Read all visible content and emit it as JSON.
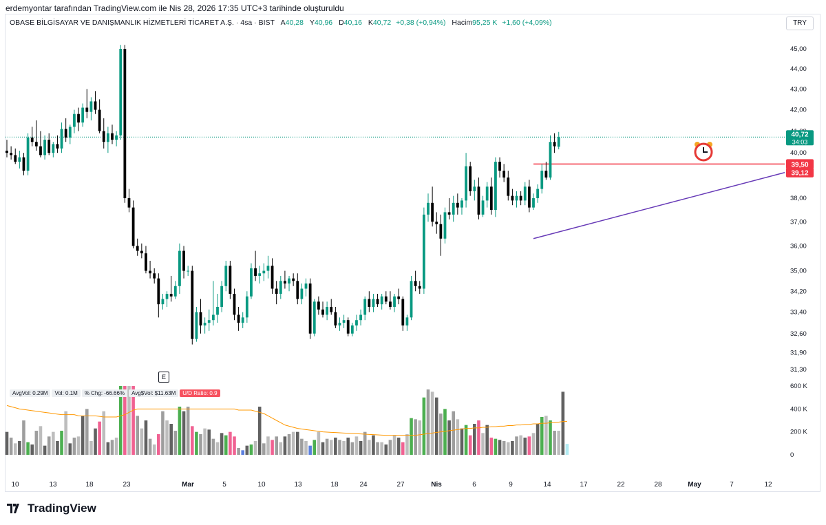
{
  "caption": "erdemyontar tarafından TradingView.com ile Nis 28, 2026 17:35 UTC+3 tarihinde oluşturuldu",
  "legend": {
    "symbol": "OBASE BİLGİSAYAR VE DANIŞMANLIK HİZMETLERİ TİCARET A.Ş. · 4sa · BIST",
    "open_label": "A",
    "open": "40,28",
    "high_label": "Y",
    "high": "40,96",
    "low_label": "D",
    "low": "40,16",
    "close_label": "K",
    "close": "40,72",
    "change": "+0,38 (+0,94%)",
    "volume_label": "Hacim",
    "volume": "95,25 K",
    "volume_change": "+1,60 (+4,09%)"
  },
  "currency": "TRY",
  "volume_legend": [
    "AvgVol: 0.29M",
    "Vol: 0.1M",
    "% Chg: -66.66%",
    "Avg$Vol: $11.63M",
    "U/D Ratio: 0.9"
  ],
  "earnings_marker": "E",
  "brand": "TradingView",
  "colors": {
    "up": "#089981",
    "down": "#000000",
    "resistance": "#f23645",
    "trendline": "#673ab7",
    "vol_avg": "#ff9800"
  },
  "chart_data": {
    "type": "candlestick",
    "interval": "4h",
    "price_axis": {
      "ticks": [
        "45,00",
        "44,00",
        "43,00",
        "42,00",
        "41,00",
        "40,00",
        "38,00",
        "37,00",
        "36,00",
        "35,00",
        "34,20",
        "33,40",
        "32,60",
        "31,90",
        "31,30"
      ],
      "tick_values": [
        45.0,
        44.0,
        43.0,
        42.0,
        41.0,
        40.0,
        38.0,
        37.0,
        36.0,
        35.0,
        34.2,
        33.4,
        32.6,
        31.9,
        31.3
      ],
      "scale": "log",
      "range": [
        31.0,
        45.6
      ]
    },
    "x_axis": {
      "labels": [
        "10",
        "13",
        "18",
        "23",
        "Mar",
        "5",
        "10",
        "13",
        "18",
        "24",
        "27",
        "Nis",
        "6",
        "9",
        "14",
        "17",
        "22",
        "28",
        "May",
        "7",
        "12"
      ],
      "bold": [
        "Mar",
        "Nis",
        "May"
      ]
    },
    "last_price": {
      "value": "40,72",
      "countdown": "34:03"
    },
    "resistance": {
      "value": 39.5,
      "label": "39,50"
    },
    "trendline": {
      "from": 36.3,
      "to": 39.12,
      "label": "39,12"
    },
    "alert_icon": "alarm-clock-icon",
    "ohlc": [
      [
        40.1,
        40.6,
        39.8,
        40.0
      ],
      [
        40.0,
        40.3,
        39.7,
        39.9
      ],
      [
        39.9,
        40.2,
        39.5,
        39.6
      ],
      [
        39.6,
        40.1,
        39.3,
        39.8
      ],
      [
        39.8,
        40.0,
        39.0,
        39.2
      ],
      [
        39.2,
        40.9,
        39.0,
        40.7
      ],
      [
        40.7,
        41.2,
        40.3,
        40.5
      ],
      [
        40.5,
        41.5,
        40.1,
        40.3
      ],
      [
        40.3,
        41.0,
        39.8,
        39.9
      ],
      [
        39.9,
        40.8,
        39.7,
        40.6
      ],
      [
        40.6,
        40.9,
        39.9,
        40.0
      ],
      [
        40.0,
        40.5,
        39.8,
        40.4
      ],
      [
        40.4,
        40.8,
        40.0,
        40.2
      ],
      [
        40.2,
        41.4,
        40.0,
        41.1
      ],
      [
        41.1,
        41.6,
        40.5,
        40.7
      ],
      [
        40.7,
        41.3,
        40.4,
        41.2
      ],
      [
        41.2,
        42.0,
        40.9,
        41.8
      ],
      [
        41.8,
        42.1,
        41.0,
        41.4
      ],
      [
        41.4,
        42.3,
        41.2,
        42.1
      ],
      [
        42.1,
        43.0,
        41.6,
        41.9
      ],
      [
        41.9,
        42.6,
        41.5,
        42.4
      ],
      [
        42.4,
        42.9,
        41.8,
        42.0
      ],
      [
        42.0,
        42.5,
        40.9,
        41.0
      ],
      [
        41.0,
        41.6,
        40.2,
        40.5
      ],
      [
        40.5,
        41.2,
        40.0,
        40.9
      ],
      [
        40.9,
        41.3,
        40.4,
        40.6
      ],
      [
        40.6,
        41.0,
        40.3,
        40.8
      ],
      [
        40.8,
        45.2,
        40.6,
        45.0
      ],
      [
        45.0,
        45.2,
        37.8,
        38.0
      ],
      [
        38.0,
        38.4,
        37.4,
        37.6
      ],
      [
        37.6,
        37.9,
        35.9,
        36.0
      ],
      [
        36.0,
        36.3,
        35.6,
        35.8
      ],
      [
        35.8,
        36.1,
        35.5,
        35.7
      ],
      [
        35.7,
        36.0,
        34.9,
        35.0
      ],
      [
        35.0,
        35.4,
        34.7,
        34.9
      ],
      [
        34.9,
        35.1,
        34.5,
        34.7
      ],
      [
        34.7,
        34.9,
        33.2,
        33.7
      ],
      [
        33.7,
        34.1,
        33.5,
        33.9
      ],
      [
        33.9,
        34.2,
        33.6,
        34.1
      ],
      [
        34.1,
        34.8,
        33.8,
        34.0
      ],
      [
        34.0,
        34.6,
        33.9,
        34.4
      ],
      [
        34.4,
        36.1,
        34.1,
        35.8
      ],
      [
        35.8,
        36.0,
        34.7,
        35.0
      ],
      [
        35.0,
        35.2,
        34.8,
        35.0
      ],
      [
        35.0,
        35.2,
        32.2,
        32.4
      ],
      [
        32.4,
        33.6,
        32.3,
        33.4
      ],
      [
        33.4,
        33.9,
        32.6,
        32.9
      ],
      [
        32.9,
        33.2,
        32.6,
        33.0
      ],
      [
        33.0,
        33.5,
        32.7,
        33.1
      ],
      [
        33.1,
        34.6,
        32.9,
        33.3
      ],
      [
        33.3,
        34.1,
        33.0,
        33.6
      ],
      [
        33.6,
        34.6,
        33.4,
        34.4
      ],
      [
        34.4,
        35.4,
        34.2,
        35.2
      ],
      [
        35.2,
        35.4,
        33.9,
        34.1
      ],
      [
        34.1,
        34.3,
        33.1,
        33.3
      ],
      [
        33.3,
        33.6,
        32.7,
        33.0
      ],
      [
        33.0,
        33.4,
        32.8,
        33.2
      ],
      [
        33.2,
        34.2,
        33.0,
        34.0
      ],
      [
        34.0,
        35.3,
        33.9,
        35.1
      ],
      [
        35.1,
        35.8,
        34.6,
        34.8
      ],
      [
        34.8,
        35.2,
        34.5,
        34.9
      ],
      [
        34.9,
        35.3,
        34.6,
        35.0
      ],
      [
        35.0,
        35.6,
        34.7,
        35.2
      ],
      [
        35.2,
        35.5,
        34.1,
        34.3
      ],
      [
        34.3,
        34.6,
        33.7,
        34.1
      ],
      [
        34.1,
        34.8,
        33.9,
        34.6
      ],
      [
        34.6,
        35.0,
        34.3,
        34.5
      ],
      [
        34.5,
        34.8,
        34.2,
        34.7
      ],
      [
        34.7,
        34.9,
        34.4,
        34.6
      ],
      [
        34.6,
        34.9,
        33.7,
        33.9
      ],
      [
        33.9,
        34.5,
        33.7,
        34.3
      ],
      [
        34.3,
        34.7,
        34.0,
        34.5
      ],
      [
        34.5,
        34.7,
        32.4,
        32.6
      ],
      [
        32.6,
        33.9,
        32.5,
        33.8
      ],
      [
        33.8,
        34.0,
        33.3,
        33.5
      ],
      [
        33.5,
        33.8,
        33.2,
        33.3
      ],
      [
        33.3,
        33.8,
        33.1,
        33.6
      ],
      [
        33.6,
        33.9,
        33.3,
        33.4
      ],
      [
        33.4,
        33.6,
        32.8,
        32.9
      ],
      [
        32.9,
        33.2,
        32.7,
        33.0
      ],
      [
        33.0,
        33.3,
        32.8,
        33.1
      ],
      [
        33.1,
        33.2,
        32.5,
        32.6
      ],
      [
        32.6,
        33.0,
        32.5,
        32.9
      ],
      [
        32.9,
        33.3,
        32.7,
        33.1
      ],
      [
        33.1,
        33.5,
        32.9,
        33.3
      ],
      [
        33.3,
        34.0,
        33.1,
        33.9
      ],
      [
        33.9,
        34.2,
        33.4,
        33.6
      ],
      [
        33.6,
        34.1,
        33.4,
        33.9
      ],
      [
        33.9,
        34.1,
        33.6,
        33.7
      ],
      [
        33.7,
        34.1,
        33.5,
        34.0
      ],
      [
        34.0,
        34.2,
        33.7,
        33.8
      ],
      [
        33.8,
        34.2,
        33.5,
        33.6
      ],
      [
        33.6,
        34.1,
        33.4,
        34.0
      ],
      [
        34.0,
        34.3,
        33.7,
        33.9
      ],
      [
        33.9,
        34.0,
        32.7,
        32.9
      ],
      [
        32.9,
        33.3,
        32.7,
        33.2
      ],
      [
        33.2,
        34.8,
        33.1,
        34.6
      ],
      [
        34.6,
        35.0,
        34.2,
        34.4
      ],
      [
        34.4,
        34.6,
        34.1,
        34.3
      ],
      [
        34.3,
        37.6,
        34.1,
        37.3
      ],
      [
        37.3,
        38.2,
        37.0,
        37.8
      ],
      [
        37.8,
        38.5,
        36.8,
        37.0
      ],
      [
        37.0,
        37.4,
        36.5,
        36.9
      ],
      [
        36.9,
        37.3,
        35.6,
        36.3
      ],
      [
        36.3,
        37.6,
        36.1,
        37.4
      ],
      [
        37.4,
        38.0,
        37.1,
        37.3
      ],
      [
        37.3,
        38.1,
        37.0,
        37.8
      ],
      [
        37.8,
        38.2,
        37.3,
        37.6
      ],
      [
        37.6,
        38.0,
        37.3,
        37.9
      ],
      [
        37.9,
        40.0,
        37.6,
        39.4
      ],
      [
        39.4,
        39.6,
        38.1,
        38.3
      ],
      [
        38.3,
        38.8,
        37.9,
        38.5
      ],
      [
        38.5,
        38.9,
        37.1,
        37.3
      ],
      [
        37.3,
        38.1,
        37.2,
        37.9
      ],
      [
        37.9,
        38.7,
        37.6,
        38.5
      ],
      [
        38.5,
        38.9,
        37.3,
        37.5
      ],
      [
        37.5,
        39.8,
        37.2,
        39.6
      ],
      [
        39.6,
        39.8,
        38.9,
        39.2
      ],
      [
        39.2,
        39.5,
        38.7,
        38.9
      ],
      [
        38.9,
        39.2,
        37.9,
        38.1
      ],
      [
        38.1,
        38.4,
        37.7,
        37.9
      ],
      [
        37.9,
        38.3,
        37.6,
        38.1
      ],
      [
        38.1,
        38.3,
        37.7,
        37.9
      ],
      [
        37.9,
        38.7,
        37.7,
        38.5
      ],
      [
        38.5,
        38.8,
        37.4,
        37.6
      ],
      [
        37.6,
        38.2,
        37.5,
        38.0
      ],
      [
        38.0,
        38.6,
        37.8,
        38.4
      ],
      [
        38.4,
        39.5,
        38.2,
        39.2
      ],
      [
        39.2,
        39.6,
        38.8,
        38.9
      ],
      [
        38.9,
        40.8,
        38.8,
        40.5
      ],
      [
        40.5,
        40.9,
        40.0,
        40.3
      ],
      [
        40.28,
        40.96,
        40.16,
        40.72
      ]
    ],
    "volume": {
      "axis_ticks": [
        "600 K",
        "400 K",
        "200 K",
        "0"
      ],
      "axis_values": [
        600000,
        400000,
        200000,
        0
      ],
      "values": [
        200000,
        150000,
        100000,
        120000,
        300000,
        110000,
        90000,
        210000,
        250000,
        80000,
        160000,
        200000,
        120000,
        210000,
        380000,
        100000,
        150000,
        160000,
        340000,
        400000,
        120000,
        230000,
        290000,
        380000,
        110000,
        130000,
        150000,
        600000,
        600000,
        600000,
        600000,
        340000,
        230000,
        300000,
        140000,
        90000,
        180000,
        380000,
        300000,
        270000,
        210000,
        420000,
        380000,
        420000,
        250000,
        200000,
        180000,
        230000,
        220000,
        140000,
        110000,
        190000,
        170000,
        200000,
        160000,
        60000,
        40000,
        80000,
        90000,
        120000,
        420000,
        100000,
        160000,
        130000,
        160000,
        110000,
        160000,
        180000,
        200000,
        200000,
        140000,
        120000,
        80000,
        130000,
        200000,
        110000,
        140000,
        130000,
        150000,
        130000,
        120000,
        150000,
        110000,
        160000,
        120000,
        200000,
        130000,
        170000,
        110000,
        110000,
        90000,
        130000,
        170000,
        150000,
        110000,
        180000,
        320000,
        310000,
        300000,
        500000,
        570000,
        550000,
        500000,
        360000,
        400000,
        300000,
        380000,
        310000,
        230000,
        260000,
        170000,
        270000,
        300000,
        190000,
        260000,
        150000,
        140000,
        130000,
        120000,
        110000,
        120000,
        160000,
        170000,
        150000,
        160000,
        190000,
        270000,
        330000,
        340000,
        300000,
        210000,
        210000,
        550000,
        95250
      ],
      "avg": [
        430000,
        420000,
        410000,
        400000,
        395000,
        390000,
        385000,
        380000,
        375000,
        370000,
        365000,
        360000,
        355000,
        350000,
        350000,
        350000,
        350000,
        340000,
        340000,
        340000,
        340000,
        340000,
        335000,
        330000,
        330000,
        330000,
        330000,
        340000,
        350000,
        370000,
        390000,
        400000,
        400000,
        400000,
        400000,
        400000,
        400000,
        400000,
        400000,
        400000,
        400000,
        400000,
        400000,
        400000,
        400000,
        400000,
        400000,
        400000,
        400000,
        400000,
        400000,
        400000,
        400000,
        400000,
        400000,
        390000,
        390000,
        390000,
        390000,
        380000,
        370000,
        360000,
        340000,
        320000,
        300000,
        280000,
        260000,
        250000,
        240000,
        230000,
        225000,
        220000,
        215000,
        210000,
        205000,
        200000,
        198000,
        196000,
        194000,
        192000,
        190000,
        188000,
        186000,
        184000,
        182000,
        180000,
        178000,
        176000,
        174000,
        172000,
        170000,
        170000,
        170000,
        170000,
        170000,
        170000,
        170000,
        170000,
        175000,
        180000,
        185000,
        190000,
        195000,
        200000,
        205000,
        210000,
        215000,
        220000,
        225000,
        230000,
        230000,
        235000,
        235000,
        240000,
        240000,
        245000,
        245000,
        250000,
        250000,
        255000,
        255000,
        260000,
        260000,
        265000,
        265000,
        270000,
        270000,
        275000,
        275000,
        280000,
        280000,
        285000,
        290000,
        290000
      ]
    }
  }
}
